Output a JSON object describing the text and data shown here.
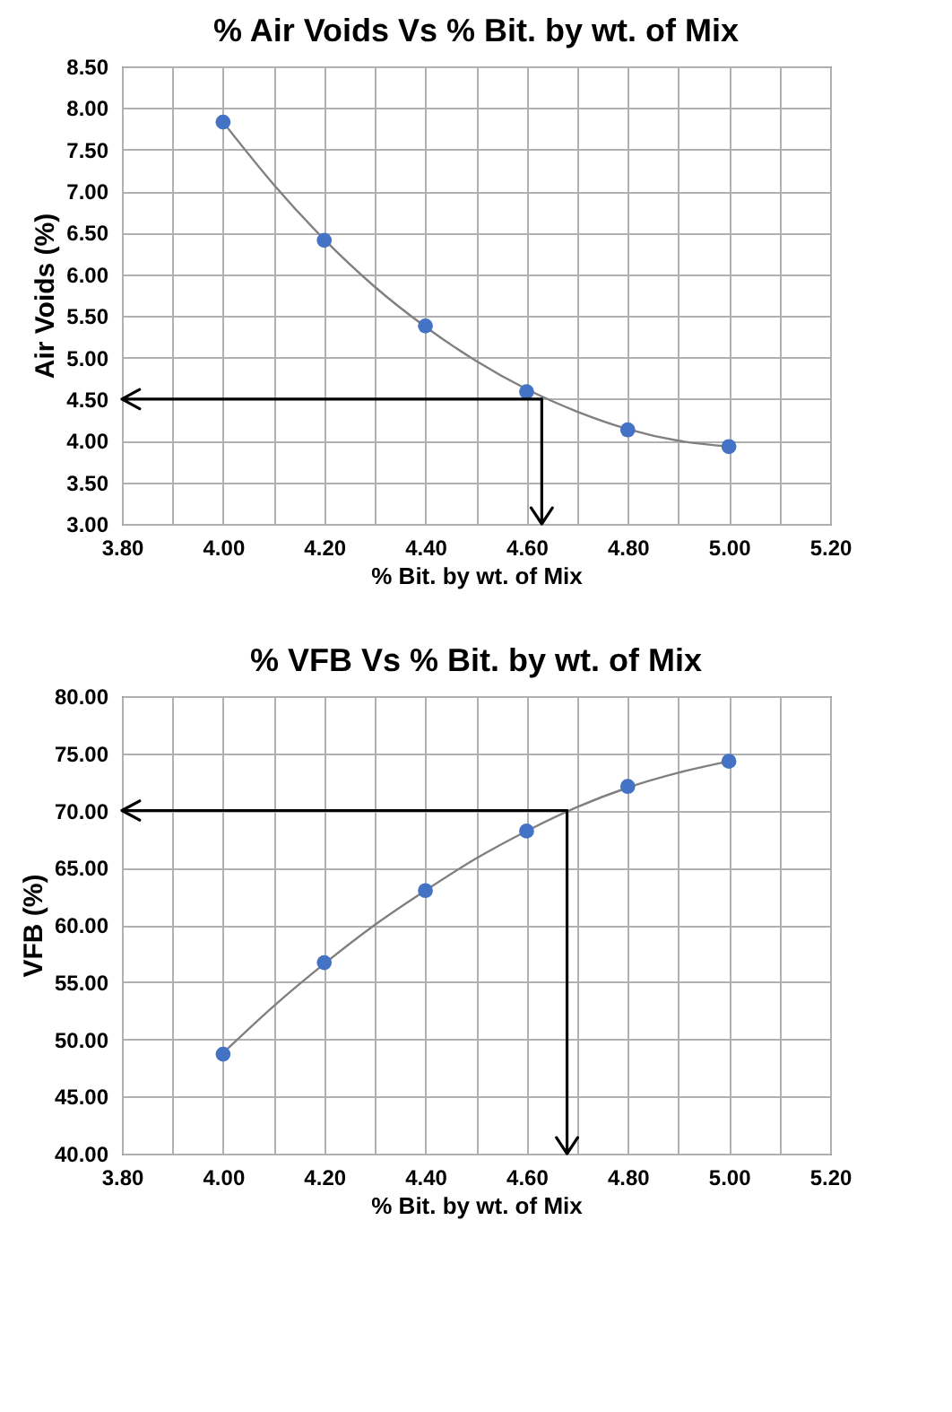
{
  "chart_data": [
    {
      "type": "scatter",
      "title": "% Air Voids Vs % Bit. by wt. of Mix",
      "xlabel": "% Bit. by wt. of Mix",
      "ylabel": "Air Voids (%)",
      "grid": true,
      "x": [
        4.0,
        4.2,
        4.4,
        4.6,
        4.8,
        5.0
      ],
      "series": [
        {
          "color": "#4472c4",
          "marker": "circle",
          "values": [
            7.83,
            6.41,
            5.38,
            4.59,
            4.13,
            3.93
          ]
        },
        {
          "type": "line",
          "color": "#808080",
          "marker": "none",
          "x": [
            4.0,
            4.1,
            4.2,
            4.3,
            4.4,
            4.5,
            4.6,
            4.7,
            4.8,
            4.9,
            5.0
          ],
          "values": [
            7.83,
            7.08,
            6.42,
            5.85,
            5.37,
            4.96,
            4.62,
            4.35,
            4.14,
            4.0,
            3.93
          ]
        }
      ],
      "ref_lines": [
        {
          "axis": "y",
          "value": 4.5,
          "color": "#000000"
        },
        {
          "axis": "x",
          "value": 4.63,
          "color": "#000000"
        }
      ],
      "xlim": [
        3.8,
        5.2
      ],
      "ylim": [
        3.0,
        8.5
      ],
      "xticks": [
        {
          "value": 3.8,
          "label": "3.80"
        },
        {
          "value": 3.9,
          "label": null
        },
        {
          "value": 4.0,
          "label": "4.00"
        },
        {
          "value": 4.1,
          "label": null
        },
        {
          "value": 4.2,
          "label": "4.20"
        },
        {
          "value": 4.3,
          "label": null
        },
        {
          "value": 4.4,
          "label": "4.40"
        },
        {
          "value": 4.5,
          "label": null
        },
        {
          "value": 4.6,
          "label": "4.60"
        },
        {
          "value": 4.7,
          "label": null
        },
        {
          "value": 4.8,
          "label": "4.80"
        },
        {
          "value": 4.9,
          "label": null
        },
        {
          "value": 5.0,
          "label": "5.00"
        },
        {
          "value": 5.1,
          "label": null
        },
        {
          "value": 5.2,
          "label": "5.20"
        }
      ],
      "yticks": [
        {
          "value": 3.0,
          "label": "3.00"
        },
        {
          "value": 3.5,
          "label": "3.50"
        },
        {
          "value": 4.0,
          "label": "4.00"
        },
        {
          "value": 4.5,
          "label": "4.50"
        },
        {
          "value": 5.0,
          "label": "5.00"
        },
        {
          "value": 5.5,
          "label": "5.50"
        },
        {
          "value": 6.0,
          "label": "6.00"
        },
        {
          "value": 6.5,
          "label": "6.50"
        },
        {
          "value": 7.0,
          "label": "7.00"
        },
        {
          "value": 7.5,
          "label": "7.50"
        },
        {
          "value": 8.0,
          "label": "8.00"
        },
        {
          "value": 8.5,
          "label": "8.50"
        }
      ]
    },
    {
      "type": "scatter",
      "title": "% VFB Vs % Bit. by wt. of Mix",
      "xlabel": "% Bit. by wt. of Mix",
      "ylabel": "VFB (%)",
      "grid": true,
      "x": [
        4.0,
        4.2,
        4.4,
        4.6,
        4.8,
        5.0
      ],
      "series": [
        {
          "color": "#4472c4",
          "marker": "circle",
          "values": [
            48.7,
            56.7,
            63.0,
            68.2,
            72.1,
            74.3
          ]
        },
        {
          "type": "line",
          "color": "#808080",
          "marker": "none",
          "x": [
            4.0,
            4.1,
            4.2,
            4.3,
            4.4,
            4.5,
            4.6,
            4.7,
            4.8,
            4.9,
            5.0
          ],
          "values": [
            48.8,
            52.9,
            56.6,
            60.0,
            63.0,
            65.8,
            68.2,
            70.3,
            72.0,
            73.3,
            74.3
          ]
        }
      ],
      "ref_lines": [
        {
          "axis": "y",
          "value": 70.0,
          "color": "#000000"
        },
        {
          "axis": "x",
          "value": 4.68,
          "color": "#000000"
        }
      ],
      "xlim": [
        3.8,
        5.2
      ],
      "ylim": [
        40,
        80
      ],
      "xticks": [
        {
          "value": 3.8,
          "label": "3.80"
        },
        {
          "value": 3.9,
          "label": null
        },
        {
          "value": 4.0,
          "label": "4.00"
        },
        {
          "value": 4.1,
          "label": null
        },
        {
          "value": 4.2,
          "label": "4.20"
        },
        {
          "value": 4.3,
          "label": null
        },
        {
          "value": 4.4,
          "label": "4.40"
        },
        {
          "value": 4.5,
          "label": null
        },
        {
          "value": 4.6,
          "label": "4.60"
        },
        {
          "value": 4.7,
          "label": null
        },
        {
          "value": 4.8,
          "label": "4.80"
        },
        {
          "value": 4.9,
          "label": null
        },
        {
          "value": 5.0,
          "label": "5.00"
        },
        {
          "value": 5.1,
          "label": null
        },
        {
          "value": 5.2,
          "label": "5.20"
        }
      ],
      "yticks": [
        {
          "value": 40,
          "label": "40.00"
        },
        {
          "value": 45,
          "label": "45.00"
        },
        {
          "value": 50,
          "label": "50.00"
        },
        {
          "value": 55,
          "label": "55.00"
        },
        {
          "value": 60,
          "label": "60.00"
        },
        {
          "value": 65,
          "label": "65.00"
        },
        {
          "value": 70,
          "label": "70.00"
        },
        {
          "value": 75,
          "label": "75.00"
        },
        {
          "value": 80,
          "label": "80.00"
        }
      ]
    }
  ]
}
